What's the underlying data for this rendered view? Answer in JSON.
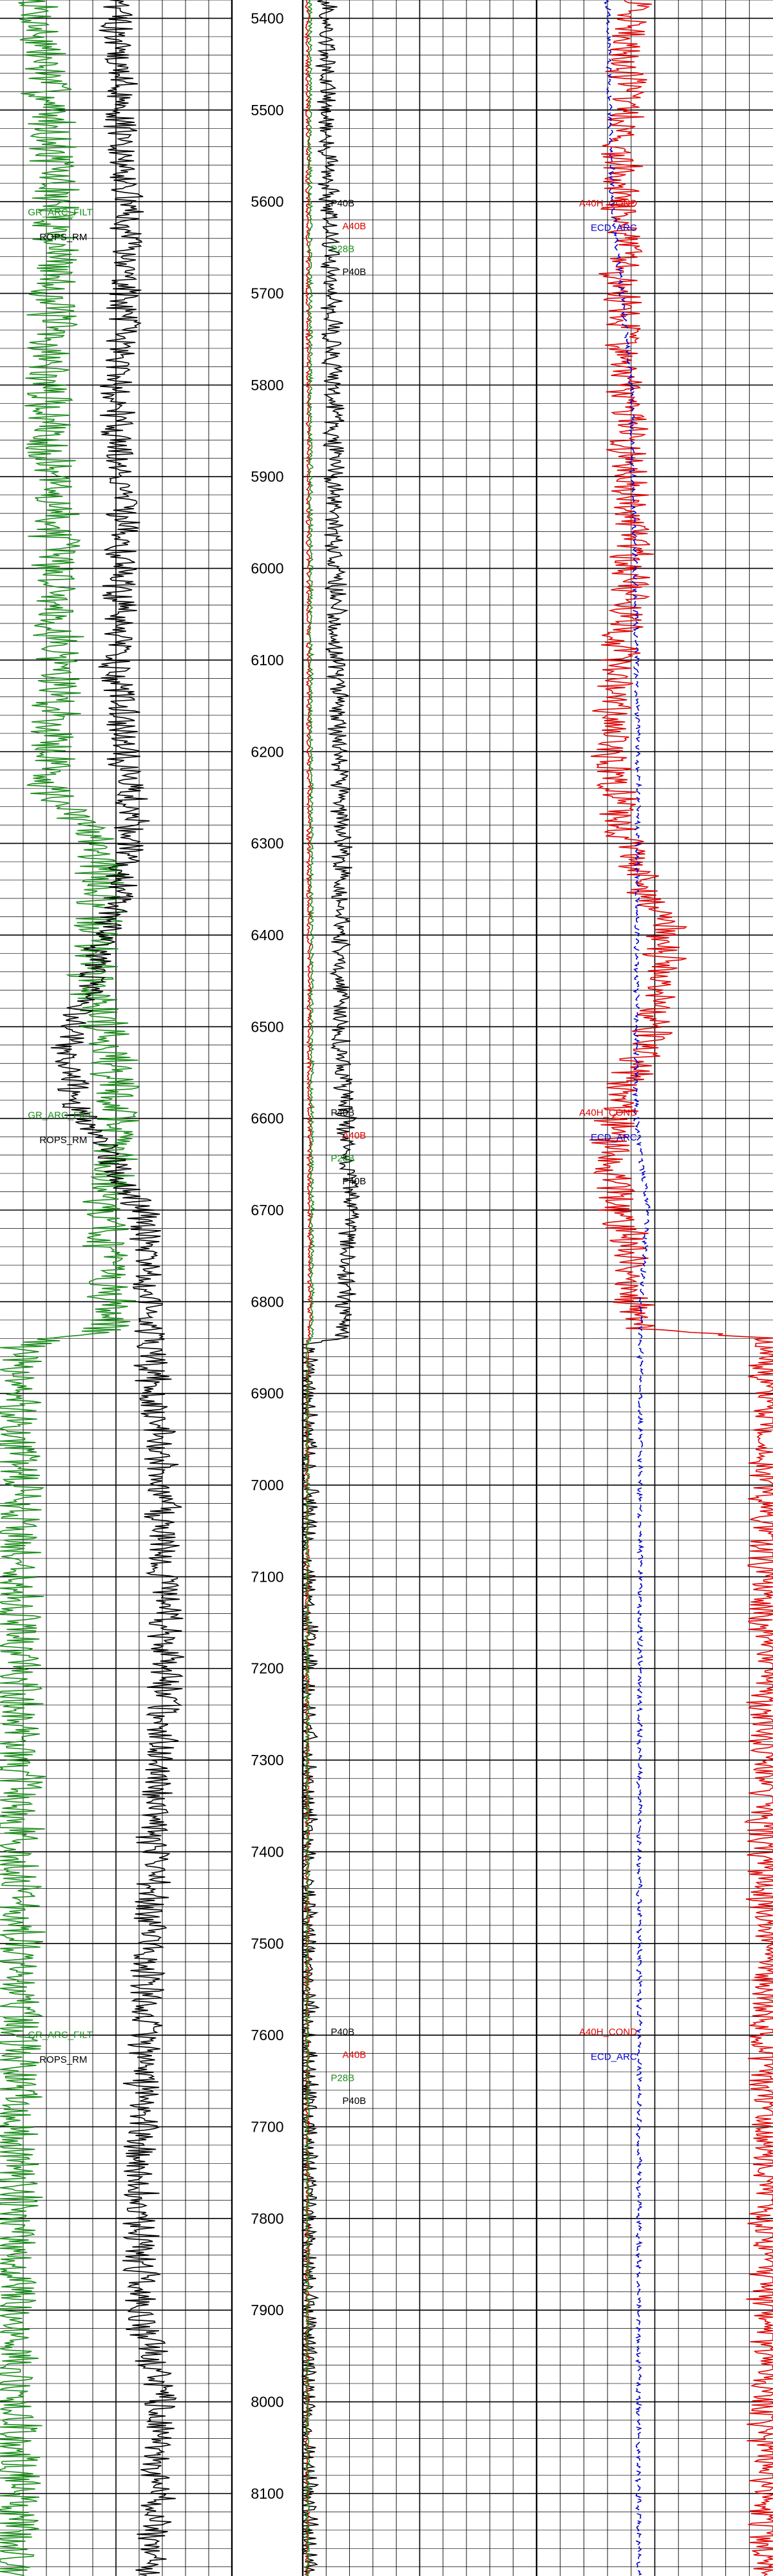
{
  "chart_data": {
    "type": "line",
    "title": "",
    "depth_axis": {
      "range": [
        5380,
        8190
      ],
      "major_step": 100,
      "minor_step": 20,
      "tick_labels": [
        "5400",
        "5500",
        "5600",
        "5700",
        "5800",
        "5900",
        "6000",
        "6100",
        "6200",
        "6300",
        "6400",
        "6500",
        "6600",
        "6700",
        "6800",
        "6900",
        "7000",
        "7100",
        "7200",
        "7300",
        "7400",
        "7500",
        "7600",
        "7700",
        "7800",
        "7900",
        "8000",
        "8100"
      ]
    },
    "grid": true,
    "tracks": [
      {
        "name": "track-1",
        "scale": [
          0,
          100
        ],
        "curves": [
          {
            "name": "GR_ARC_FILT",
            "color": "#1a8c1a",
            "profile": [
              [
                5380,
                15
              ],
              [
                5500,
                22
              ],
              [
                5650,
                25
              ],
              [
                5800,
                20
              ],
              [
                5950,
                24
              ],
              [
                6100,
                26
              ],
              [
                6250,
                22
              ],
              [
                6300,
                45
              ],
              [
                6450,
                40
              ],
              [
                6520,
                48
              ],
              [
                6600,
                52
              ],
              [
                6700,
                46
              ],
              [
                6830,
                47
              ],
              [
                6850,
                7
              ],
              [
                7000,
                8
              ],
              [
                7300,
                8
              ],
              [
                7600,
                7
              ],
              [
                7900,
                6
              ],
              [
                8190,
                6
              ]
            ],
            "noise": 10
          },
          {
            "name": "ROPS_RM",
            "color": "#000000",
            "profile": [
              [
                5380,
                50
              ],
              [
                5500,
                52
              ],
              [
                5650,
                55
              ],
              [
                5800,
                50
              ],
              [
                5950,
                54
              ],
              [
                6100,
                50
              ],
              [
                6300,
                58
              ],
              [
                6450,
                40
              ],
              [
                6520,
                28
              ],
              [
                6600,
                35
              ],
              [
                6700,
                62
              ],
              [
                6850,
                65
              ],
              [
                7000,
                70
              ],
              [
                7200,
                72
              ],
              [
                7400,
                66
              ],
              [
                7600,
                62
              ],
              [
                7900,
                60
              ],
              [
                8000,
                70
              ],
              [
                8190,
                65
              ]
            ],
            "noise": 7
          }
        ],
        "labels": [
          {
            "text": "GR_ARC_FILT",
            "color": "#1a8c1a",
            "depth": 5615
          },
          {
            "text": "ROPS_RM",
            "color": "#000000",
            "depth": 5642
          },
          {
            "text": "GR_ARC_FILT",
            "color": "#1a8c1a",
            "depth": 6600
          },
          {
            "text": "ROPS_RM",
            "color": "#000000",
            "depth": 6627
          },
          {
            "text": "GR_ARC_FILT",
            "color": "#1a8c1a",
            "depth": 7603
          },
          {
            "text": "ROPS_RM",
            "color": "#000000",
            "depth": 7630
          }
        ]
      },
      {
        "name": "track-2",
        "scale": [
          0,
          100
        ],
        "curves": [
          {
            "name": "P40B",
            "color": "#000000",
            "profile": [
              [
                5380,
                10
              ],
              [
                5500,
                10
              ],
              [
                5650,
                12
              ],
              [
                5800,
                13
              ],
              [
                6000,
                14
              ],
              [
                6200,
                15
              ],
              [
                6300,
                17
              ],
              [
                6500,
                16
              ],
              [
                6600,
                18
              ],
              [
                6700,
                20
              ],
              [
                6840,
                17
              ],
              [
                6845,
                2
              ],
              [
                8190,
                2
              ]
            ],
            "noise": 4
          },
          {
            "name": "A40B",
            "color": "#e00000",
            "profile": [
              [
                5380,
                2
              ],
              [
                6840,
                3
              ],
              [
                6845,
                2
              ],
              [
                8190,
                2
              ]
            ],
            "noise": 0.8
          },
          {
            "name": "P28B",
            "color": "#1a8c1a",
            "profile": [
              [
                5380,
                3
              ],
              [
                6840,
                4
              ],
              [
                6845,
                2
              ],
              [
                8190,
                2
              ]
            ],
            "noise": 0.8
          }
        ],
        "labels": [
          {
            "text": "P40B",
            "color": "#000000",
            "depth": 5605
          },
          {
            "text": "A40B",
            "color": "#e00000",
            "depth": 5630
          },
          {
            "text": "P28B",
            "color": "#1a8c1a",
            "depth": 5655
          },
          {
            "text": "P40B",
            "color": "#000000",
            "depth": 5680
          },
          {
            "text": "P40B",
            "color": "#000000",
            "depth": 6597
          },
          {
            "text": "A40B",
            "color": "#e00000",
            "depth": 6622
          },
          {
            "text": "P28B",
            "color": "#1a8c1a",
            "depth": 6647
          },
          {
            "text": "P40B",
            "color": "#000000",
            "depth": 6672
          },
          {
            "text": "P40B",
            "color": "#000000",
            "depth": 7600
          },
          {
            "text": "A40B",
            "color": "#e00000",
            "depth": 7625
          },
          {
            "text": "P28B",
            "color": "#1a8c1a",
            "depth": 7650
          },
          {
            "text": "P40B",
            "color": "#000000",
            "depth": 7675
          }
        ]
      },
      {
        "name": "track-3",
        "scale": [
          0,
          100
        ],
        "curves": [
          {
            "name": "A40H_COND",
            "color": "#e00000",
            "profile": [
              [
                5380,
                40
              ],
              [
                5600,
                35
              ],
              [
                5800,
                38
              ],
              [
                6000,
                40
              ],
              [
                6200,
                30
              ],
              [
                6280,
                35
              ],
              [
                6400,
                55
              ],
              [
                6500,
                50
              ],
              [
                6580,
                35
              ],
              [
                6650,
                30
              ],
              [
                6750,
                40
              ],
              [
                6830,
                42
              ],
              [
                6840,
                98
              ],
              [
                8190,
                98
              ]
            ],
            "noise": 8
          },
          {
            "name": "ECD_ARC",
            "color": "#0000cc",
            "profile": [
              [
                5380,
                30
              ],
              [
                5600,
                32
              ],
              [
                5800,
                40
              ],
              [
                6200,
                43
              ],
              [
                6600,
                42
              ],
              [
                6700,
                47
              ],
              [
                6800,
                44
              ],
              [
                8190,
                43
              ]
            ],
            "noise": 1,
            "dashed": true
          }
        ],
        "labels": [
          {
            "text": "A40H_COND",
            "color": "#e00000",
            "depth": 5605
          },
          {
            "text": "ECD_ARC",
            "color": "#0000cc",
            "depth": 5632
          },
          {
            "text": "A40H_COND",
            "color": "#e00000",
            "depth": 6597
          },
          {
            "text": "ECD_ARC",
            "color": "#0000cc",
            "depth": 6624
          },
          {
            "text": "A40H_COND",
            "color": "#e00000",
            "depth": 7600
          },
          {
            "text": "ECD_ARC",
            "color": "#0000cc",
            "depth": 7627
          }
        ]
      }
    ]
  }
}
